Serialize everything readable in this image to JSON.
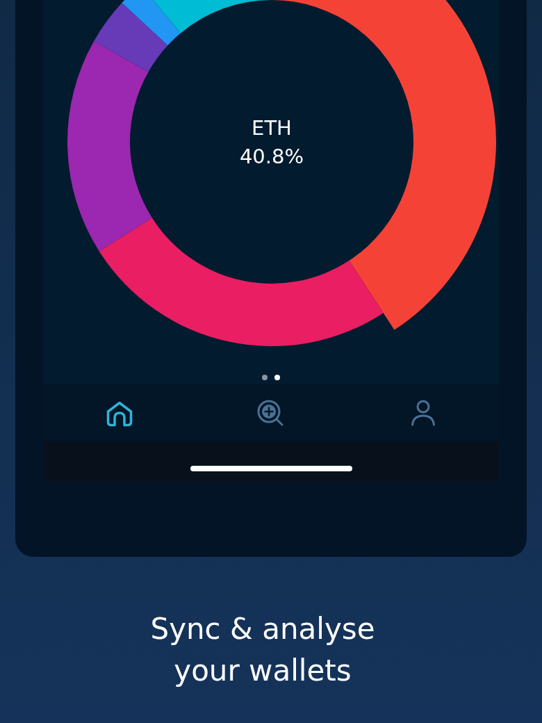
{
  "chart_data": {
    "type": "donut",
    "title": "Sync & analyse your wallets",
    "categories": [
      "ETH",
      null,
      null,
      null,
      null,
      null
    ],
    "values": [
      40.8,
      25.2,
      17.2,
      3.7,
      2.0,
      11.1
    ],
    "colors": [
      "#f44336",
      "#e91e63",
      "#9c27b0",
      "#673ab7",
      "#2196f3",
      "#00bcd4"
    ],
    "value_labels": [
      "40.8%",
      null,
      null,
      null,
      null,
      null
    ]
  }
}
